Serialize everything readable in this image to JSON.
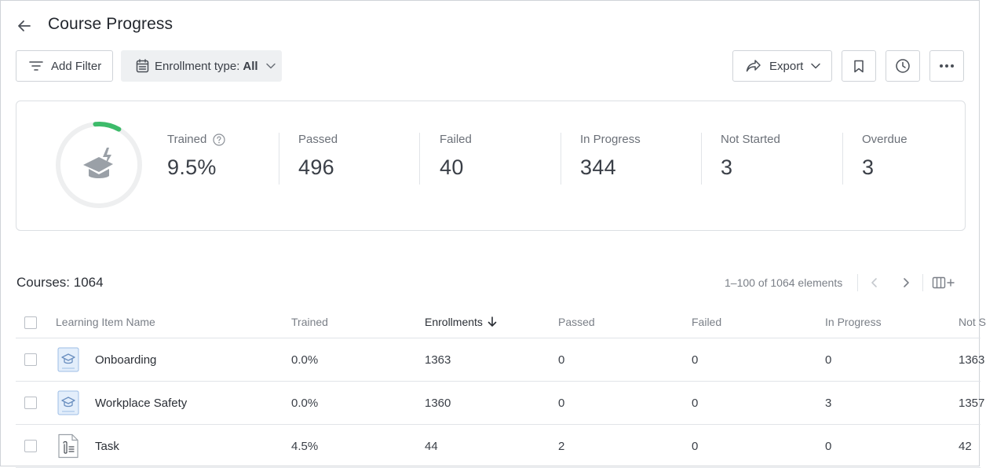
{
  "header": {
    "title": "Course Progress"
  },
  "toolbar": {
    "add_filter_label": "Add Filter",
    "enrollment_prefix": "Enrollment type:",
    "enrollment_value": "All",
    "export_label": "Export"
  },
  "summary": {
    "trained_fraction": 0.095,
    "stats": [
      {
        "label": "Trained",
        "value": "9.5%"
      },
      {
        "label": "Passed",
        "value": "496"
      },
      {
        "label": "Failed",
        "value": "40"
      },
      {
        "label": "In Progress",
        "value": "344"
      },
      {
        "label": "Not Started",
        "value": "3"
      },
      {
        "label": "Overdue",
        "value": "3"
      }
    ],
    "accent_color": "#3dbb6a"
  },
  "courses": {
    "title": "Courses: 1064",
    "pagination": "1–100 of 1064 elements",
    "columns": [
      "Learning Item Name",
      "Trained",
      "Enrollments",
      "Passed",
      "Failed",
      "In Progress",
      "Not S"
    ],
    "rows": [
      {
        "icon": "course-icon",
        "name": "Onboarding",
        "trained": "0.0%",
        "enrollments": "1363",
        "passed": "0",
        "failed": "0",
        "in_progress": "0",
        "not_started": "1363"
      },
      {
        "icon": "course-icon",
        "name": "Workplace Safety",
        "trained": "0.0%",
        "enrollments": "1360",
        "passed": "0",
        "failed": "0",
        "in_progress": "3",
        "not_started": "1357"
      },
      {
        "icon": "task-icon",
        "name": "Task",
        "trained": "4.5%",
        "enrollments": "44",
        "passed": "2",
        "failed": "0",
        "in_progress": "0",
        "not_started": "42"
      }
    ]
  }
}
